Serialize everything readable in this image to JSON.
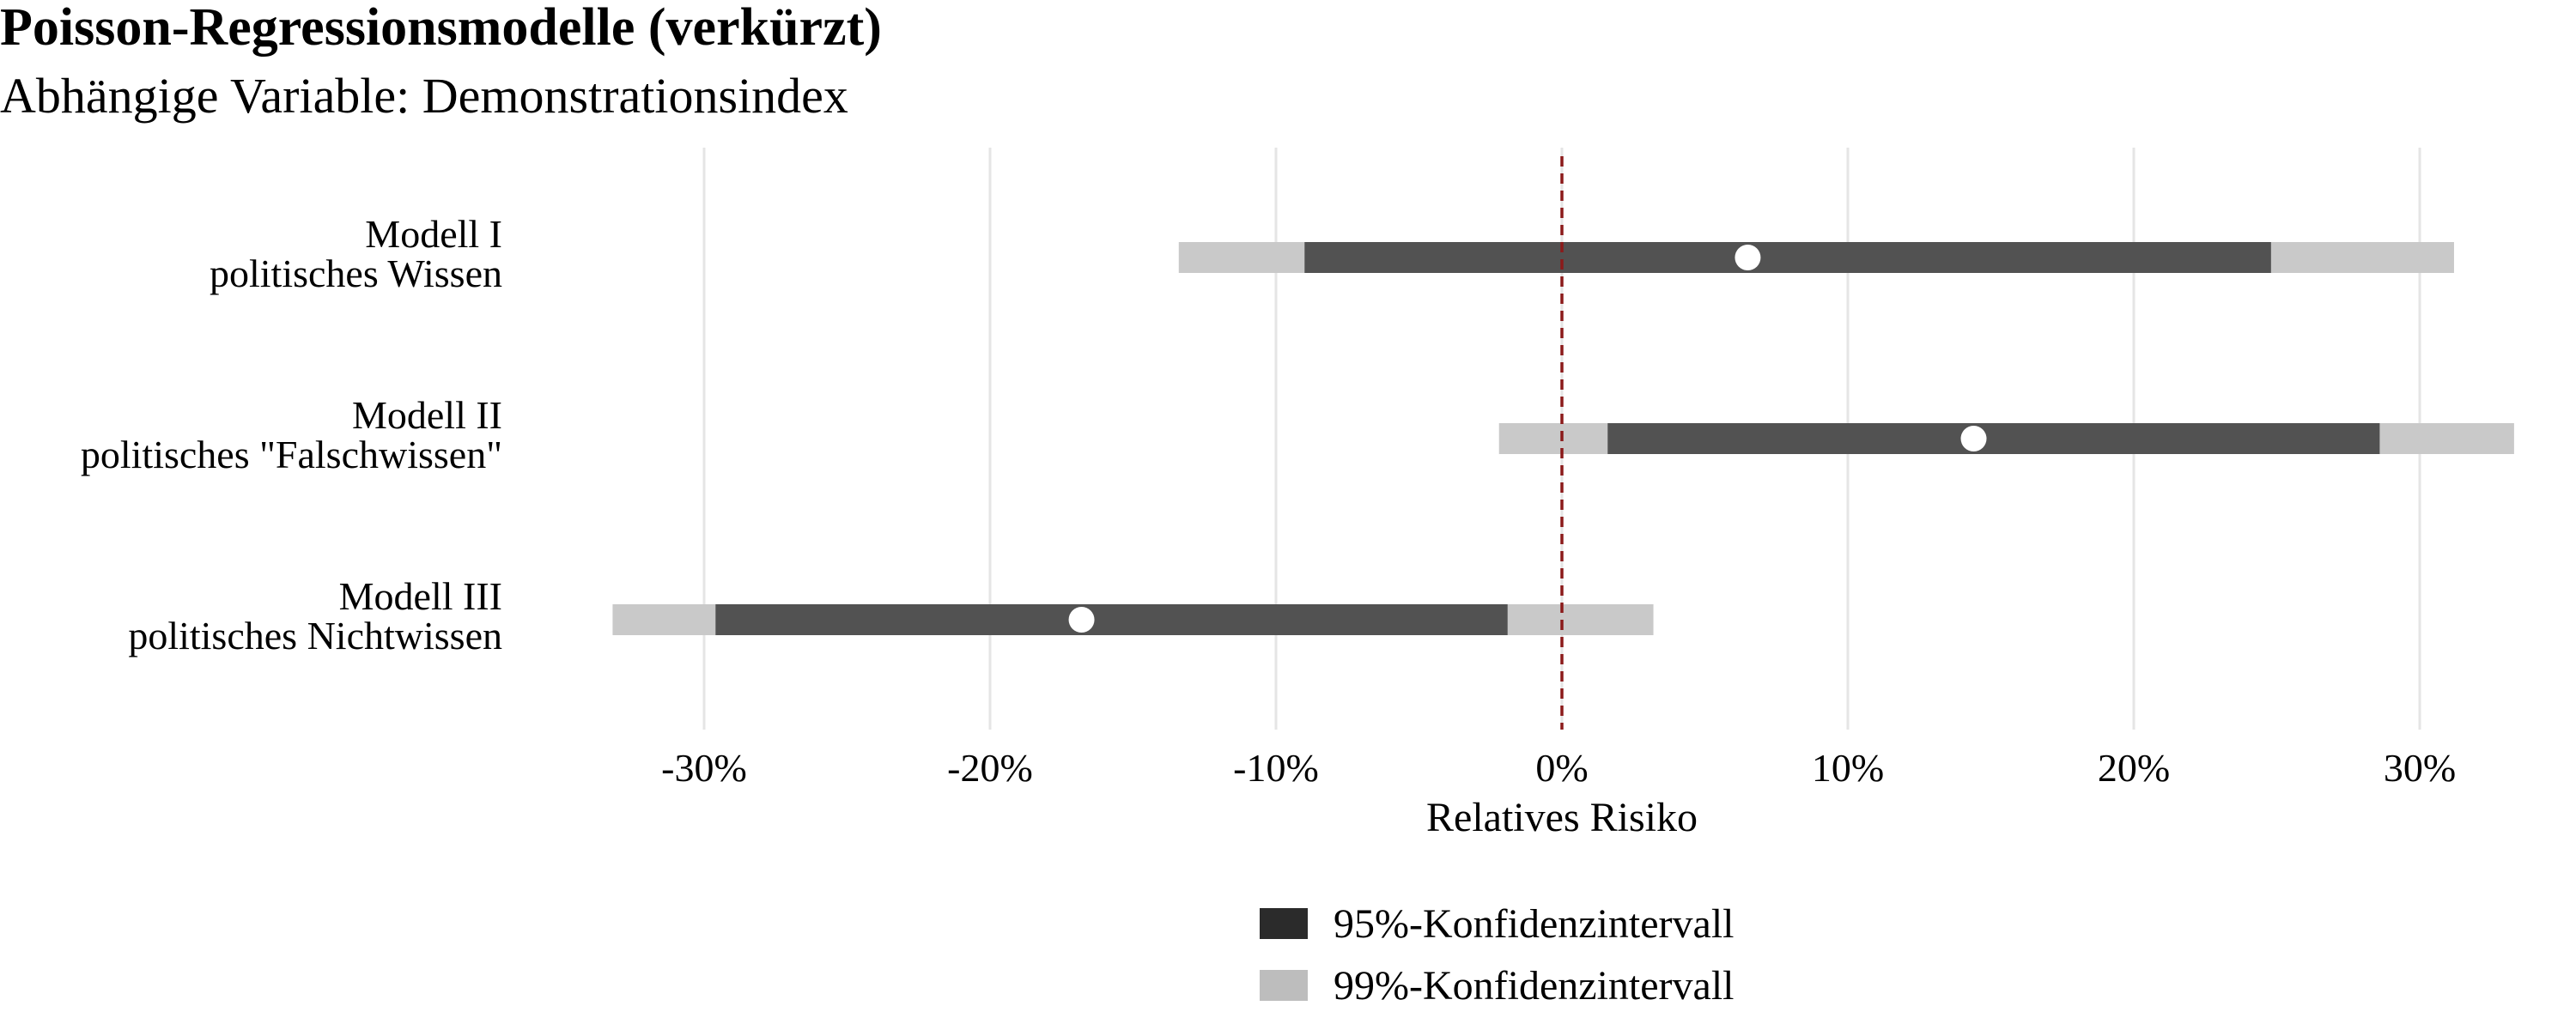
{
  "title": "Poisson-Regressionsmodelle (verkürzt)",
  "subtitle": "Abhängige Variable: Demonstrationsindex",
  "colors": {
    "ci95": "#525252",
    "ci99": "#c9c9c9",
    "point": "#ffffff",
    "reference_line": "#8b1a1a",
    "grid": "#e5e5e5",
    "legend_ci95": "#2b2b2b",
    "legend_ci99": "#bdbdbd"
  },
  "legend": {
    "ci95_label": "95%-Konfidenzintervall",
    "ci99_label": "99%-Konfidenzintervall"
  },
  "chart_data": {
    "type": "interval",
    "xlabel": "Relatives Risiko",
    "x_unit": "percent",
    "xlim": [
      -34,
      34
    ],
    "xticks": [
      -30,
      -20,
      -10,
      0,
      10,
      20,
      30
    ],
    "xtick_labels": [
      "-30%",
      "-20%",
      "-10%",
      "0%",
      "10%",
      "20%",
      "30%"
    ],
    "reference_line": 0,
    "grid": "vertical",
    "legend_position": "bottom",
    "models": [
      {
        "label_line1": "Modell I",
        "label_line2": "politisches Wissen",
        "estimate": 6.5,
        "ci95": [
          -9,
          24.8
        ],
        "ci99": [
          -13.4,
          31.2
        ]
      },
      {
        "label_line1": "Modell II",
        "label_line2": "politisches \"Falschwissen\"",
        "estimate": 14.4,
        "ci95": [
          1.6,
          28.6
        ],
        "ci99": [
          -2.2,
          33.3
        ]
      },
      {
        "label_line1": "Modell III",
        "label_line2": "politisches Nichtwissen",
        "estimate": -16.8,
        "ci95": [
          -29.6,
          -1.9
        ],
        "ci99": [
          -33.2,
          3.2
        ]
      }
    ]
  }
}
